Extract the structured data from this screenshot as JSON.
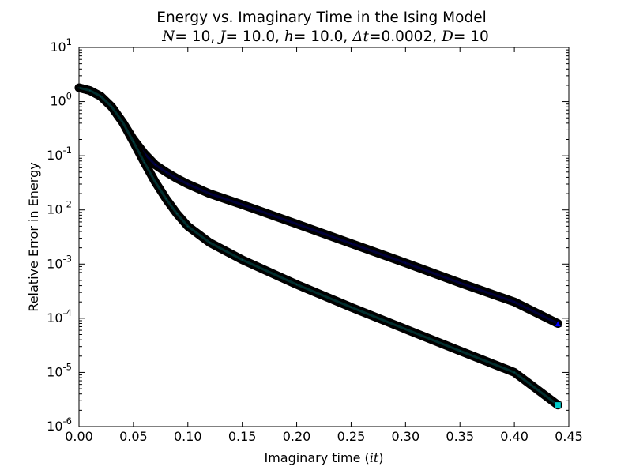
{
  "chart_data": {
    "type": "line",
    "title": "Energy vs. Imaginary Time in the Ising Model",
    "subtitle": {
      "n_label": "N",
      "n_value": "10",
      "j_label": "J",
      "j_value": "10.0",
      "h_label": "h",
      "h_value": "10.0",
      "dt_label": "Δt",
      "dt_value": "0.0002",
      "d_label": "D",
      "d_value": "10"
    },
    "xlabel": {
      "text": "Imaginary time",
      "math": "it"
    },
    "ylabel": "Relative Error in Energy",
    "xlim": [
      0.0,
      0.45
    ],
    "ylim": [
      1e-06,
      10
    ],
    "yscale": "log",
    "x_ticks": [
      "0.00",
      "0.05",
      "0.10",
      "0.15",
      "0.20",
      "0.25",
      "0.30",
      "0.35",
      "0.40",
      "0.45"
    ],
    "y_ticks": [
      {
        "base": "10",
        "exp": "-6"
      },
      {
        "base": "10",
        "exp": "-5"
      },
      {
        "base": "10",
        "exp": "-4"
      },
      {
        "base": "10",
        "exp": "-3"
      },
      {
        "base": "10",
        "exp": "-2"
      },
      {
        "base": "10",
        "exp": "-1"
      },
      {
        "base": "10",
        "exp": "0"
      },
      {
        "base": "10",
        "exp": "1"
      }
    ],
    "grid": false,
    "series": [
      {
        "color": "#0000ff",
        "marker": "triangle",
        "x": [
          0.0,
          0.01,
          0.02,
          0.03,
          0.04,
          0.05,
          0.06,
          0.07,
          0.08,
          0.09,
          0.1,
          0.12,
          0.15,
          0.2,
          0.25,
          0.3,
          0.35,
          0.4,
          0.44
        ],
        "y": [
          1.8,
          1.6,
          1.25,
          0.8,
          0.42,
          0.2,
          0.11,
          0.068,
          0.05,
          0.038,
          0.03,
          0.02,
          0.0125,
          0.0055,
          0.0024,
          0.00105,
          0.00045,
          0.0002,
          8e-05
        ]
      },
      {
        "color": "#00cccc",
        "marker": "square",
        "x": [
          0.0,
          0.01,
          0.02,
          0.03,
          0.04,
          0.05,
          0.06,
          0.07,
          0.08,
          0.09,
          0.1,
          0.12,
          0.15,
          0.2,
          0.25,
          0.3,
          0.35,
          0.4,
          0.44
        ],
        "y": [
          1.8,
          1.6,
          1.25,
          0.8,
          0.42,
          0.18,
          0.075,
          0.033,
          0.016,
          0.0085,
          0.005,
          0.0025,
          0.0012,
          0.00042,
          0.00016,
          6.3e-05,
          2.5e-05,
          1e-05,
          2.5e-06
        ]
      }
    ]
  }
}
